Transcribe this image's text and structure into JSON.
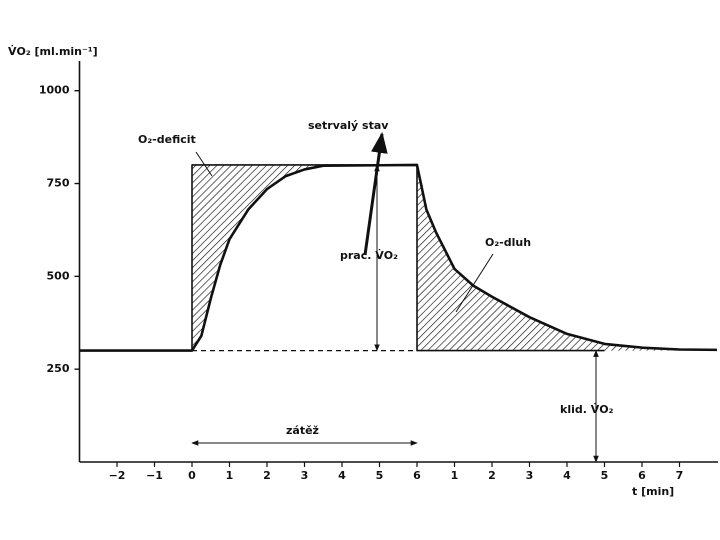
{
  "chart_data": {
    "type": "line",
    "y_label": "V̇O₂ [ml.min⁻¹]",
    "x_label": "t [min]",
    "xlim": [
      -3,
      14
    ],
    "ylim": [
      0,
      1080
    ],
    "yticks": [
      250,
      500,
      750,
      1000
    ],
    "xticks": [
      {
        "value": -2,
        "label": "−2"
      },
      {
        "value": -1,
        "label": "−1"
      },
      0,
      1,
      2,
      3,
      4,
      5,
      6,
      {
        "value": 7,
        "label": "1"
      },
      {
        "value": 8,
        "label": "2"
      },
      {
        "value": 9,
        "label": "3"
      },
      {
        "value": 10,
        "label": "4"
      },
      {
        "value": 11,
        "label": "5"
      },
      {
        "value": 12,
        "label": "6"
      },
      {
        "value": 13,
        "label": "7"
      }
    ],
    "series": [
      {
        "color": "#111111",
        "style": "solid",
        "width": 2.6,
        "x": [
          -3,
          0,
          0.25,
          0.5,
          0.75,
          1,
          1.5,
          2,
          2.5,
          3,
          3.5,
          6,
          6.25,
          6.5,
          7,
          7.5,
          8,
          9,
          10,
          11,
          12,
          13,
          14
        ],
        "values": [
          300,
          300,
          340,
          440,
          530,
          600,
          680,
          735,
          770,
          788,
          798,
          800,
          680,
          620,
          520,
          475,
          445,
          390,
          345,
          318,
          308,
          303,
          302
        ]
      },
      {
        "color": "#111111",
        "style": "solid",
        "width": 1.6,
        "x": [
          0,
          0,
          6,
          6,
          11
        ],
        "values": [
          300,
          800,
          800,
          300,
          300
        ]
      },
      {
        "color": "#111111",
        "style": "dashed",
        "width": 1.2,
        "x": [
          0,
          6
        ],
        "values": [
          300,
          300
        ]
      }
    ],
    "annotations": {
      "deficit": "O₂-deficit",
      "steady": "setrvalý stav",
      "work": "prac. V̇O₂",
      "debt": "O₂-dluh",
      "rest": "klid. V̇O₂",
      "load": "zátěž"
    }
  }
}
